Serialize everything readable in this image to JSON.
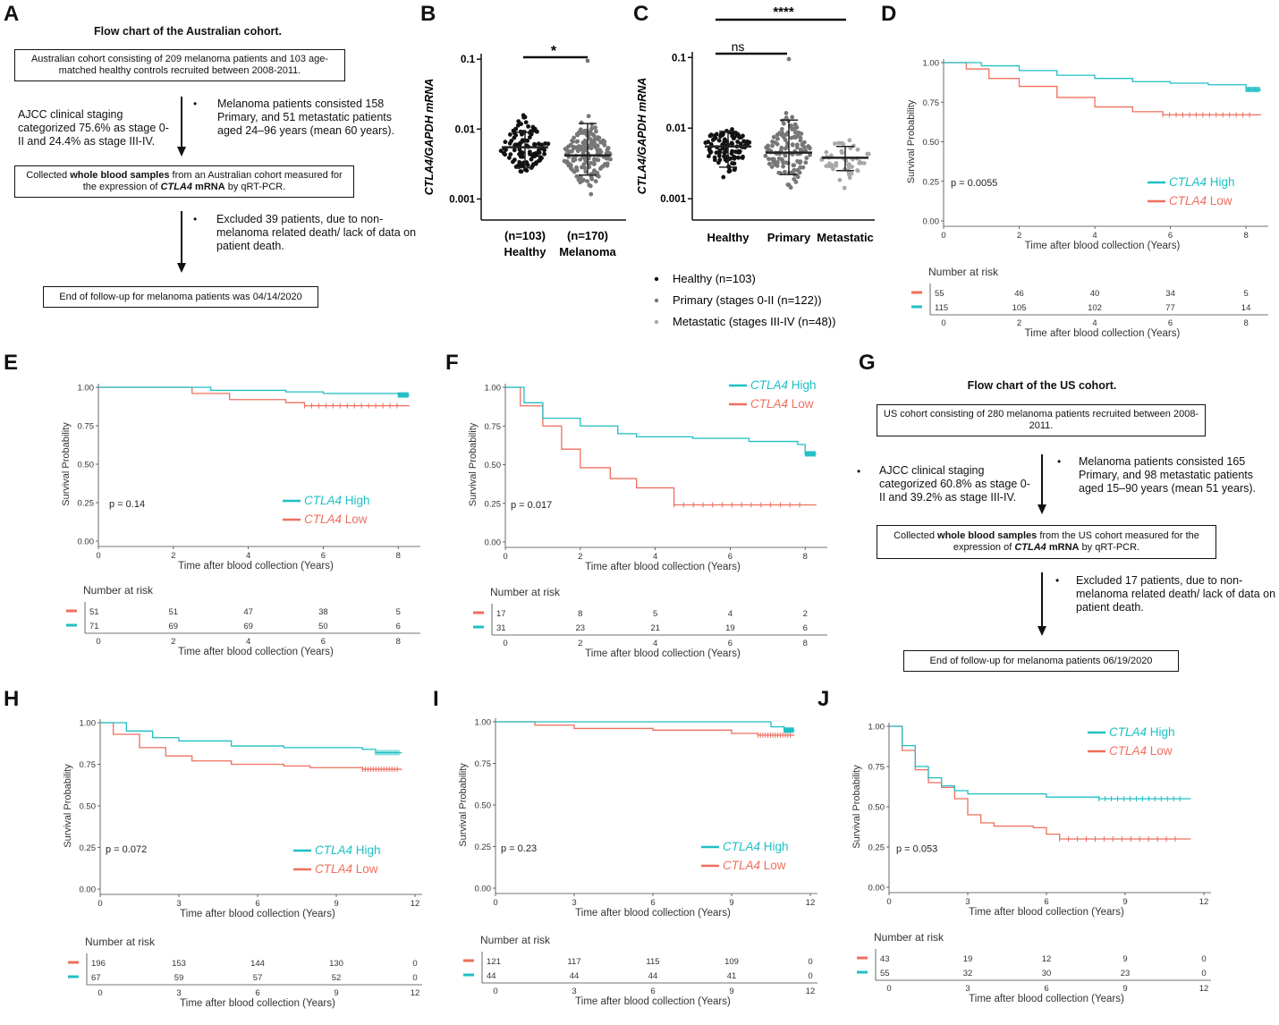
{
  "panel_letters": [
    "A",
    "B",
    "C",
    "D",
    "E",
    "F",
    "G",
    "H",
    "I",
    "J"
  ],
  "flowA": {
    "title": "Flow chart of the Australian cohort.",
    "box1": "Australian cohort consisting of 209 melanoma patients and 103 age-matched healthy controls recruited between 2008-2011.",
    "left_note": "AJCC clinical staging categorized 75.6% as stage 0-II and 24.4% as stage III-IV.",
    "right_note": "Melanoma patients consisted 158 Primary, and 51 metastatic patients aged 24–96 years (mean 60 years).",
    "box2_pre": "Collected ",
    "box2_bold1": "whole blood samples",
    "box2_mid": " from an Australian cohort measured for the expression of ",
    "box2_bold2": "CTLA4",
    "box2_bold3": " mRNA",
    "box2_post": " by qRT-PCR.",
    "excl_note": "Excluded 39 patients, due to non-melanoma related death/ lack of data on patient death.",
    "box3": "End of follow-up for melanoma patients was 04/14/2020"
  },
  "flowG": {
    "title": "Flow chart of the US cohort.",
    "box1": "US cohort consisting of 280 melanoma patients  recruited between 2008-2011.",
    "left_note": "AJCC clinical staging categorized 60.8% as stage 0-II and 39.2% as stage III-IV.",
    "right_note": "Melanoma patients consisted 165 Primary, and 98 metastatic patients aged 15–90 years (mean 51 years).",
    "box2_pre": "Collected ",
    "box2_bold1": "whole blood samples",
    "box2_mid": " from the US cohort measured for the expression of ",
    "box2_bold2": "CTLA4",
    "box2_bold3": " mRNA",
    "box2_post": " by qRT-PCR.",
    "excl_note": "Excluded 17 patients, due to non-melanoma related death/ lack of data on patient death.",
    "box3": "End of follow-up for melanoma patients 06/19/2020"
  },
  "colors": {
    "high": "#1fbfc4",
    "low": "#ef6f5e",
    "black": "#111111",
    "grey": "#777777",
    "lightgrey": "#a8a8a8"
  },
  "chart_data": [
    {
      "panel": "B",
      "type": "scatter",
      "ylabel": "CTLA4/GAPDH mRNA",
      "yscale": "log",
      "yticks": [
        {
          "v": 0.1,
          "label": "0.1"
        },
        {
          "v": 0.01,
          "label": "0.01"
        },
        {
          "v": 0.001,
          "label": "0.001"
        }
      ],
      "groups": [
        {
          "n": "(n=103)",
          "name": "Healthy",
          "color": "black",
          "median": 0.0055,
          "sd_lo": 0.0028,
          "sd_hi": 0.009
        },
        {
          "n": "(n=170)",
          "name": "Melanoma",
          "color": "grey",
          "median": 0.0042,
          "sd_lo": 0.0022,
          "sd_hi": 0.012
        }
      ],
      "significance": "*"
    },
    {
      "panel": "C",
      "type": "scatter",
      "ylabel": "CTLA4/GAPDH mRNA",
      "yscale": "log",
      "yticks": [
        {
          "v": 0.1,
          "label": "0.1"
        },
        {
          "v": 0.01,
          "label": "0.01"
        },
        {
          "v": 0.001,
          "label": "0.001"
        }
      ],
      "groups": [
        {
          "name": "Healthy",
          "color": "black",
          "median": 0.0055,
          "sd_lo": 0.0028,
          "sd_hi": 0.009
        },
        {
          "name": "Primary",
          "color": "grey",
          "median": 0.0045,
          "sd_lo": 0.0022,
          "sd_hi": 0.013
        },
        {
          "name": "Metastatic",
          "color": "lightgrey",
          "median": 0.0038,
          "sd_lo": 0.0025,
          "sd_hi": 0.0055
        }
      ],
      "sig_ns": "ns",
      "sig_all": "****",
      "legend": [
        "Healthy (n=103)",
        "Primary (stages 0-II (n=122))",
        "Metastatic (stages III-IV (n=48))"
      ]
    },
    {
      "panel": "D",
      "type": "line",
      "pvalue": "p = 0.0055",
      "xmax": 8.4,
      "xticks": [
        0,
        2,
        4,
        6,
        8
      ],
      "ylabel": "Survival Probability",
      "xlabel": "Time after blood collection (Years)",
      "yticks": [
        "0.00",
        "0.25",
        "0.50",
        "0.75",
        "1.00"
      ],
      "series": [
        {
          "name": "CTLA4 High",
          "color": "high",
          "pts": [
            [
              0,
              1
            ],
            [
              1,
              0.98
            ],
            [
              2,
              0.95
            ],
            [
              3,
              0.92
            ],
            [
              4,
              0.9
            ],
            [
              5,
              0.88
            ],
            [
              6,
              0.87
            ],
            [
              7,
              0.86
            ],
            [
              8,
              0.83
            ],
            [
              8.4,
              0.83
            ]
          ]
        },
        {
          "name": "CTLA4 Low",
          "color": "low",
          "pts": [
            [
              0,
              1
            ],
            [
              0.6,
              0.96
            ],
            [
              1.2,
              0.9
            ],
            [
              2,
              0.85
            ],
            [
              3,
              0.78
            ],
            [
              4,
              0.72
            ],
            [
              5,
              0.69
            ],
            [
              5.8,
              0.67
            ],
            [
              8.4,
              0.67
            ]
          ]
        }
      ],
      "risk_title": "Number at risk",
      "risk": [
        {
          "color": "low",
          "vals": [
            "55",
            "46",
            "40",
            "34",
            "5"
          ]
        },
        {
          "color": "high",
          "vals": [
            "115",
            "105",
            "102",
            "77",
            "14"
          ]
        }
      ]
    },
    {
      "panel": "E",
      "type": "line",
      "pvalue": "p = 0.14",
      "xmax": 8.4,
      "xticks": [
        0,
        2,
        4,
        6,
        8
      ],
      "ylabel": "Survival Probability",
      "xlabel": "Time after blood collection (Years)",
      "yticks": [
        "0.00",
        "0.25",
        "0.50",
        "0.75",
        "1.00"
      ],
      "series": [
        {
          "name": "CTLA4 High",
          "color": "high",
          "pts": [
            [
              0,
              1
            ],
            [
              2,
              1
            ],
            [
              3,
              0.98
            ],
            [
              5,
              0.97
            ],
            [
              6,
              0.96
            ],
            [
              8,
              0.95
            ],
            [
              8.3,
              0.95
            ]
          ]
        },
        {
          "name": "CTLA4 Low",
          "color": "low",
          "pts": [
            [
              0,
              1
            ],
            [
              1.8,
              1
            ],
            [
              2.5,
              0.96
            ],
            [
              3.5,
              0.92
            ],
            [
              5,
              0.9
            ],
            [
              5.5,
              0.88
            ],
            [
              8.3,
              0.88
            ]
          ]
        }
      ],
      "risk_title": "Number at risk",
      "risk": [
        {
          "color": "low",
          "vals": [
            "51",
            "51",
            "47",
            "38",
            "5"
          ]
        },
        {
          "color": "high",
          "vals": [
            "71",
            "69",
            "69",
            "50",
            "6"
          ]
        }
      ]
    },
    {
      "panel": "F",
      "type": "line",
      "pvalue": "p = 0.017",
      "xmax": 8.4,
      "xticks": [
        0,
        2,
        4,
        6,
        8
      ],
      "ylabel": "Survival Probability",
      "xlabel": "Time after blood collection (Years)",
      "yticks": [
        "0.00",
        "0.25",
        "0.50",
        "0.75",
        "1.00"
      ],
      "series": [
        {
          "name": "CTLA4 High",
          "color": "high",
          "pts": [
            [
              0,
              1
            ],
            [
              0.5,
              0.9
            ],
            [
              1,
              0.8
            ],
            [
              2,
              0.75
            ],
            [
              3,
              0.7
            ],
            [
              3.5,
              0.68
            ],
            [
              5,
              0.67
            ],
            [
              6.5,
              0.65
            ],
            [
              7.8,
              0.63
            ],
            [
              8,
              0.57
            ],
            [
              8.3,
              0.57
            ]
          ]
        },
        {
          "name": "CTLA4 Low",
          "color": "low",
          "pts": [
            [
              0,
              1
            ],
            [
              0.4,
              0.88
            ],
            [
              1,
              0.75
            ],
            [
              1.5,
              0.6
            ],
            [
              2,
              0.48
            ],
            [
              2.8,
              0.41
            ],
            [
              3.5,
              0.35
            ],
            [
              4.5,
              0.3
            ],
            [
              4.5,
              0.24
            ],
            [
              8.3,
              0.24
            ]
          ]
        }
      ],
      "risk_title": "Number at risk",
      "risk": [
        {
          "color": "low",
          "vals": [
            "17",
            "8",
            "5",
            "4",
            "2"
          ]
        },
        {
          "color": "high",
          "vals": [
            "31",
            "23",
            "21",
            "19",
            "6"
          ]
        }
      ]
    },
    {
      "panel": "H",
      "type": "line",
      "pvalue": "p = 0.072",
      "xmax": 12,
      "xticks": [
        0,
        3,
        6,
        9,
        12
      ],
      "ylabel": "Survival Probability",
      "xlabel": "Time after blood collection (Years)",
      "yticks": [
        "0.00",
        "0.25",
        "0.50",
        "0.75",
        "1.00"
      ],
      "series": [
        {
          "name": "CTLA4 High",
          "color": "high",
          "pts": [
            [
              0,
              1
            ],
            [
              1,
              0.95
            ],
            [
              2,
              0.91
            ],
            [
              3,
              0.89
            ],
            [
              5,
              0.86
            ],
            [
              7,
              0.85
            ],
            [
              10,
              0.84
            ],
            [
              10.5,
              0.82
            ],
            [
              11.5,
              0.82
            ]
          ]
        },
        {
          "name": "CTLA4 Low",
          "color": "low",
          "pts": [
            [
              0,
              1
            ],
            [
              0.5,
              0.93
            ],
            [
              1.5,
              0.85
            ],
            [
              2.5,
              0.8
            ],
            [
              3.5,
              0.77
            ],
            [
              5,
              0.75
            ],
            [
              7,
              0.74
            ],
            [
              8,
              0.73
            ],
            [
              10,
              0.72
            ],
            [
              11.5,
              0.72
            ]
          ]
        }
      ],
      "risk_title": "Number at risk",
      "risk": [
        {
          "color": "low",
          "vals": [
            "196",
            "153",
            "144",
            "130",
            "0"
          ]
        },
        {
          "color": "high",
          "vals": [
            "67",
            "59",
            "57",
            "52",
            "0"
          ]
        }
      ]
    },
    {
      "panel": "I",
      "type": "line",
      "pvalue": "p = 0.23",
      "xmax": 12,
      "xticks": [
        0,
        3,
        6,
        9,
        12
      ],
      "ylabel": "Survival Probability",
      "xlabel": "Time after blood collection (Years)",
      "yticks": [
        "0.00",
        "0.25",
        "0.50",
        "0.75",
        "1.00"
      ],
      "series": [
        {
          "name": "CTLA4 High",
          "color": "high",
          "pts": [
            [
              0,
              1
            ],
            [
              10,
              1
            ],
            [
              10.5,
              0.97
            ],
            [
              11,
              0.95
            ],
            [
              11.4,
              0.95
            ]
          ]
        },
        {
          "name": "CTLA4 Low",
          "color": "low",
          "pts": [
            [
              0,
              1
            ],
            [
              1.5,
              0.98
            ],
            [
              3,
              0.96
            ],
            [
              6,
              0.95
            ],
            [
              8,
              0.95
            ],
            [
              9,
              0.93
            ],
            [
              10,
              0.92
            ],
            [
              11.4,
              0.92
            ]
          ]
        }
      ],
      "risk_title": "Number at risk",
      "risk": [
        {
          "color": "low",
          "vals": [
            "121",
            "117",
            "115",
            "109",
            "0"
          ]
        },
        {
          "color": "high",
          "vals": [
            "44",
            "44",
            "44",
            "41",
            "0"
          ]
        }
      ]
    },
    {
      "panel": "J",
      "type": "line",
      "pvalue": "p = 0.053",
      "xmax": 12,
      "xticks": [
        0,
        3,
        6,
        9,
        12
      ],
      "ylabel": "Survival Probability",
      "xlabel": "Time after blood collection (Years)",
      "yticks": [
        "0.00",
        "0.25",
        "0.50",
        "0.75",
        "1.00"
      ],
      "series": [
        {
          "name": "CTLA4 High",
          "color": "high",
          "pts": [
            [
              0,
              1
            ],
            [
              0.5,
              0.88
            ],
            [
              1,
              0.75
            ],
            [
              1.5,
              0.68
            ],
            [
              2,
              0.63
            ],
            [
              2.5,
              0.6
            ],
            [
              3,
              0.58
            ],
            [
              5,
              0.58
            ],
            [
              6,
              0.56
            ],
            [
              8,
              0.55
            ],
            [
              11.5,
              0.55
            ]
          ]
        },
        {
          "name": "CTLA4 Low",
          "color": "low",
          "pts": [
            [
              0,
              1
            ],
            [
              0.5,
              0.85
            ],
            [
              1,
              0.73
            ],
            [
              1.5,
              0.65
            ],
            [
              2,
              0.62
            ],
            [
              2.5,
              0.55
            ],
            [
              3,
              0.45
            ],
            [
              3.5,
              0.4
            ],
            [
              4,
              0.38
            ],
            [
              5.5,
              0.37
            ],
            [
              6,
              0.33
            ],
            [
              6.5,
              0.3
            ],
            [
              11.5,
              0.3
            ]
          ]
        }
      ],
      "risk_title": "Number at risk",
      "risk": [
        {
          "color": "low",
          "vals": [
            "43",
            "19",
            "12",
            "9",
            "0"
          ]
        },
        {
          "color": "high",
          "vals": [
            "55",
            "32",
            "30",
            "23",
            "0"
          ]
        }
      ]
    }
  ]
}
